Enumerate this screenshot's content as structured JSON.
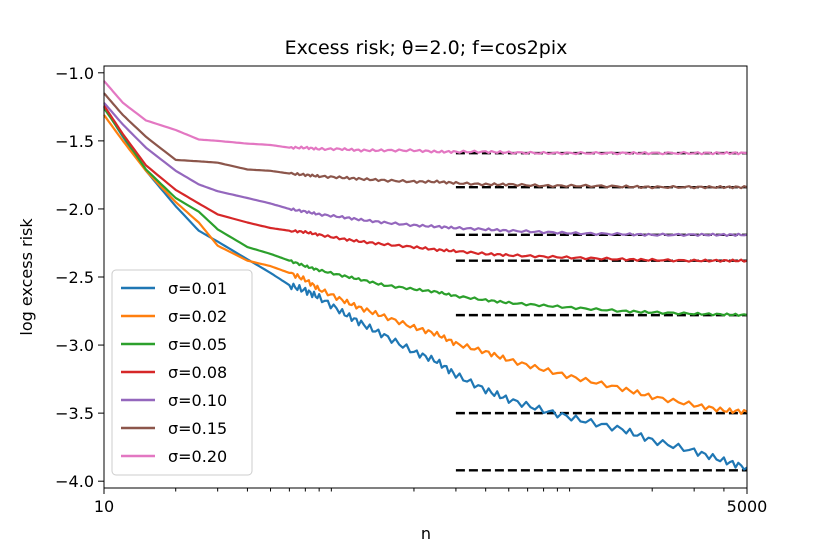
{
  "chart_data": {
    "type": "line",
    "title": "Excess risk; θ=2.0;  f=cos2pix",
    "xlabel": "n",
    "ylabel": "log excess risk",
    "x_scale": "log",
    "xlim": [
      10,
      5000
    ],
    "ylim": [
      -4.05,
      -0.95
    ],
    "x_ticks": [
      10,
      5000
    ],
    "x_tick_labels": [
      "10",
      "5000"
    ],
    "y_ticks": [
      -1.0,
      -1.5,
      -2.0,
      -2.5,
      -3.0,
      -3.5,
      -4.0
    ],
    "y_tick_labels": [
      "−1.0",
      "−1.5",
      "−2.0",
      "−2.5",
      "−3.0",
      "−3.5",
      "−4.0"
    ],
    "legend_position": "lower-left",
    "asymptote_x_start": 300,
    "series": [
      {
        "name": "σ=0.01",
        "color": "#1f77b4",
        "asymptote": -3.92,
        "points": [
          [
            10,
            -1.25
          ],
          [
            12,
            -1.47
          ],
          [
            15,
            -1.72
          ],
          [
            20,
            -1.98
          ],
          [
            25,
            -2.16
          ],
          [
            30,
            -2.24
          ],
          [
            40,
            -2.37
          ],
          [
            50,
            -2.47
          ],
          [
            60,
            -2.56
          ],
          [
            70,
            -2.6
          ],
          [
            80,
            -2.65
          ],
          [
            100,
            -2.76
          ],
          [
            120,
            -2.84
          ],
          [
            150,
            -2.93
          ],
          [
            200,
            -3.05
          ],
          [
            250,
            -3.12
          ],
          [
            300,
            -3.22
          ],
          [
            400,
            -3.33
          ],
          [
            500,
            -3.4
          ],
          [
            700,
            -3.48
          ],
          [
            1000,
            -3.55
          ],
          [
            1500,
            -3.62
          ],
          [
            2000,
            -3.7
          ],
          [
            3000,
            -3.78
          ],
          [
            4000,
            -3.85
          ],
          [
            5000,
            -3.9
          ]
        ]
      },
      {
        "name": "σ=0.02",
        "color": "#ff7f0e",
        "asymptote": -3.5,
        "points": [
          [
            10,
            -1.31
          ],
          [
            12,
            -1.5
          ],
          [
            15,
            -1.72
          ],
          [
            20,
            -1.95
          ],
          [
            25,
            -2.1
          ],
          [
            30,
            -2.27
          ],
          [
            40,
            -2.38
          ],
          [
            50,
            -2.42
          ],
          [
            60,
            -2.47
          ],
          [
            70,
            -2.52
          ],
          [
            80,
            -2.59
          ],
          [
            100,
            -2.67
          ],
          [
            120,
            -2.73
          ],
          [
            150,
            -2.79
          ],
          [
            200,
            -2.87
          ],
          [
            250,
            -2.92
          ],
          [
            300,
            -2.99
          ],
          [
            400,
            -3.05
          ],
          [
            500,
            -3.11
          ],
          [
            700,
            -3.18
          ],
          [
            1000,
            -3.25
          ],
          [
            1500,
            -3.32
          ],
          [
            2000,
            -3.38
          ],
          [
            3000,
            -3.44
          ],
          [
            4000,
            -3.48
          ],
          [
            5000,
            -3.49
          ]
        ]
      },
      {
        "name": "σ=0.05",
        "color": "#2ca02c",
        "asymptote": -2.78,
        "points": [
          [
            10,
            -1.26
          ],
          [
            12,
            -1.46
          ],
          [
            15,
            -1.71
          ],
          [
            20,
            -1.92
          ],
          [
            25,
            -2.02
          ],
          [
            30,
            -2.15
          ],
          [
            40,
            -2.28
          ],
          [
            50,
            -2.33
          ],
          [
            60,
            -2.38
          ],
          [
            70,
            -2.42
          ],
          [
            80,
            -2.45
          ],
          [
            100,
            -2.49
          ],
          [
            120,
            -2.52
          ],
          [
            150,
            -2.56
          ],
          [
            200,
            -2.59
          ],
          [
            250,
            -2.61
          ],
          [
            300,
            -2.64
          ],
          [
            400,
            -2.67
          ],
          [
            500,
            -2.69
          ],
          [
            700,
            -2.71
          ],
          [
            1000,
            -2.73
          ],
          [
            1500,
            -2.75
          ],
          [
            2000,
            -2.76
          ],
          [
            3000,
            -2.77
          ],
          [
            4000,
            -2.775
          ],
          [
            5000,
            -2.78
          ]
        ]
      },
      {
        "name": "σ=0.08",
        "color": "#d62728",
        "asymptote": -2.38,
        "points": [
          [
            10,
            -1.24
          ],
          [
            12,
            -1.45
          ],
          [
            15,
            -1.68
          ],
          [
            20,
            -1.86
          ],
          [
            25,
            -1.96
          ],
          [
            30,
            -2.04
          ],
          [
            40,
            -2.1
          ],
          [
            50,
            -2.14
          ],
          [
            60,
            -2.16
          ],
          [
            70,
            -2.17
          ],
          [
            80,
            -2.19
          ],
          [
            100,
            -2.22
          ],
          [
            120,
            -2.24
          ],
          [
            150,
            -2.26
          ],
          [
            200,
            -2.28
          ],
          [
            250,
            -2.3
          ],
          [
            300,
            -2.31
          ],
          [
            400,
            -2.33
          ],
          [
            500,
            -2.34
          ],
          [
            700,
            -2.35
          ],
          [
            1000,
            -2.36
          ],
          [
            1500,
            -2.37
          ],
          [
            2000,
            -2.375
          ],
          [
            3000,
            -2.38
          ],
          [
            4000,
            -2.38
          ],
          [
            5000,
            -2.38
          ]
        ]
      },
      {
        "name": "σ=0.10",
        "color": "#9467bd",
        "asymptote": -2.19,
        "points": [
          [
            10,
            -1.22
          ],
          [
            12,
            -1.38
          ],
          [
            15,
            -1.55
          ],
          [
            20,
            -1.72
          ],
          [
            25,
            -1.82
          ],
          [
            30,
            -1.87
          ],
          [
            40,
            -1.92
          ],
          [
            50,
            -1.96
          ],
          [
            60,
            -2.0
          ],
          [
            70,
            -2.02
          ],
          [
            80,
            -2.04
          ],
          [
            100,
            -2.06
          ],
          [
            120,
            -2.08
          ],
          [
            150,
            -2.1
          ],
          [
            200,
            -2.12
          ],
          [
            250,
            -2.13
          ],
          [
            300,
            -2.14
          ],
          [
            400,
            -2.15
          ],
          [
            500,
            -2.16
          ],
          [
            700,
            -2.17
          ],
          [
            1000,
            -2.18
          ],
          [
            1500,
            -2.185
          ],
          [
            2000,
            -2.19
          ],
          [
            3000,
            -2.19
          ],
          [
            4000,
            -2.19
          ],
          [
            5000,
            -2.19
          ]
        ]
      },
      {
        "name": "σ=0.15",
        "color": "#8c564b",
        "asymptote": -1.84,
        "points": [
          [
            10,
            -1.15
          ],
          [
            12,
            -1.31
          ],
          [
            15,
            -1.47
          ],
          [
            20,
            -1.64
          ],
          [
            25,
            -1.65
          ],
          [
            30,
            -1.66
          ],
          [
            40,
            -1.71
          ],
          [
            50,
            -1.72
          ],
          [
            60,
            -1.74
          ],
          [
            70,
            -1.75
          ],
          [
            80,
            -1.76
          ],
          [
            100,
            -1.77
          ],
          [
            120,
            -1.78
          ],
          [
            150,
            -1.79
          ],
          [
            200,
            -1.8
          ],
          [
            250,
            -1.8
          ],
          [
            300,
            -1.81
          ],
          [
            400,
            -1.82
          ],
          [
            500,
            -1.82
          ],
          [
            700,
            -1.83
          ],
          [
            1000,
            -1.83
          ],
          [
            1500,
            -1.835
          ],
          [
            2000,
            -1.84
          ],
          [
            3000,
            -1.84
          ],
          [
            4000,
            -1.84
          ],
          [
            5000,
            -1.84
          ]
        ]
      },
      {
        "name": "σ=0.20",
        "color": "#e377c2",
        "asymptote": -1.59,
        "points": [
          [
            10,
            -1.06
          ],
          [
            12,
            -1.22
          ],
          [
            15,
            -1.35
          ],
          [
            20,
            -1.42
          ],
          [
            25,
            -1.49
          ],
          [
            30,
            -1.5
          ],
          [
            40,
            -1.52
          ],
          [
            50,
            -1.53
          ],
          [
            60,
            -1.55
          ],
          [
            70,
            -1.55
          ],
          [
            80,
            -1.56
          ],
          [
            100,
            -1.56
          ],
          [
            120,
            -1.57
          ],
          [
            150,
            -1.57
          ],
          [
            200,
            -1.57
          ],
          [
            250,
            -1.58
          ],
          [
            300,
            -1.58
          ],
          [
            400,
            -1.58
          ],
          [
            500,
            -1.585
          ],
          [
            700,
            -1.59
          ],
          [
            1000,
            -1.59
          ],
          [
            1500,
            -1.59
          ],
          [
            2000,
            -1.59
          ],
          [
            3000,
            -1.59
          ],
          [
            4000,
            -1.59
          ],
          [
            5000,
            -1.59
          ]
        ]
      }
    ]
  }
}
